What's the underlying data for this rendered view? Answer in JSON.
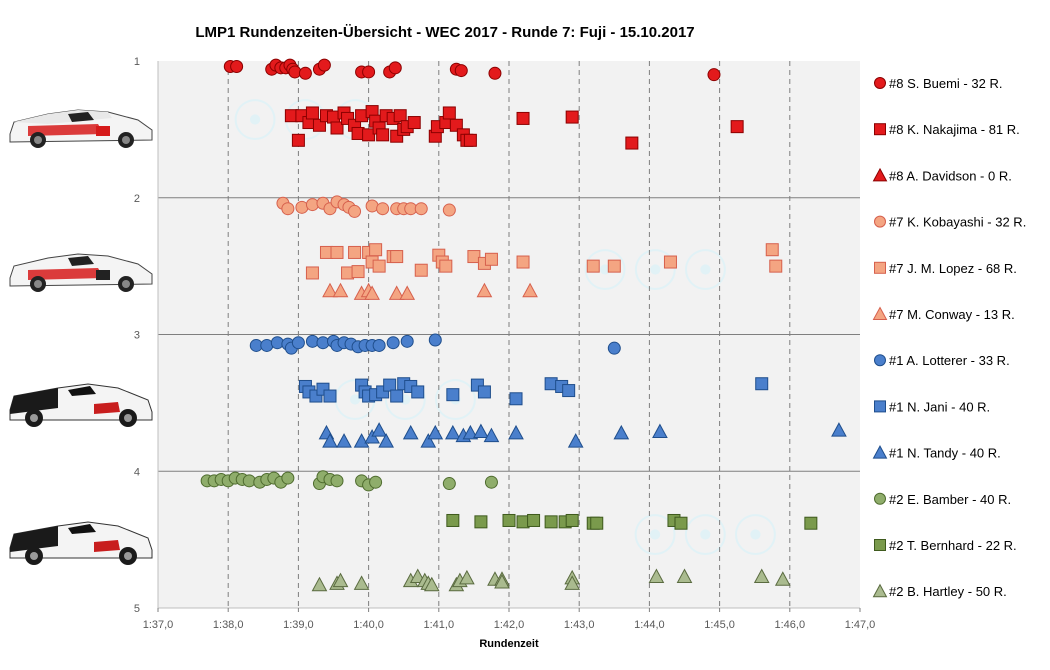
{
  "chart_data": {
    "type": "scatter",
    "title": "LMP1  Rundenzeiten-Übersicht  - WEC 2017  - Runde  7: Fuji  - 15.10.2017",
    "xlabel": "Rundenzeit",
    "ylabel": "",
    "xlim": [
      97,
      107
    ],
    "ylim": [
      1,
      5
    ],
    "y_reversed": true,
    "grid": {
      "x": "dashed",
      "y": "solid"
    },
    "legend_position": "right",
    "xticks": [
      {
        "value": 97,
        "label": "1:37,0"
      },
      {
        "value": 98,
        "label": "1:38,0"
      },
      {
        "value": 99,
        "label": "1:39,0"
      },
      {
        "value": 100,
        "label": "1:40,0"
      },
      {
        "value": 101,
        "label": "1:41,0"
      },
      {
        "value": 102,
        "label": "1:42,0"
      },
      {
        "value": 103,
        "label": "1:43,0"
      },
      {
        "value": 104,
        "label": "1:44,0"
      },
      {
        "value": 105,
        "label": "1:45,0"
      },
      {
        "value": 106,
        "label": "1:46,0"
      },
      {
        "value": 107,
        "label": "1:47,0"
      }
    ],
    "yticks": [
      {
        "value": 1,
        "label": "1"
      },
      {
        "value": 2,
        "label": "2"
      },
      {
        "value": 3,
        "label": "3"
      },
      {
        "value": 4,
        "label": "4"
      },
      {
        "value": 5,
        "label": "5"
      }
    ],
    "series": [
      {
        "name": "#8 S. Buemi - 32 R.",
        "marker": "circle",
        "color": "#e31a1c",
        "stroke": "#8b0000",
        "points": [
          [
            98.03,
            1.04
          ],
          [
            98.12,
            1.04
          ],
          [
            98.62,
            1.06
          ],
          [
            98.68,
            1.03
          ],
          [
            98.75,
            1.05
          ],
          [
            98.82,
            1.05
          ],
          [
            98.88,
            1.03
          ],
          [
            98.92,
            1.06
          ],
          [
            98.95,
            1.08
          ],
          [
            99.1,
            1.09
          ],
          [
            99.3,
            1.06
          ],
          [
            99.37,
            1.03
          ],
          [
            99.9,
            1.08
          ],
          [
            100.0,
            1.08
          ],
          [
            100.3,
            1.08
          ],
          [
            100.38,
            1.05
          ],
          [
            101.25,
            1.06
          ],
          [
            101.32,
            1.07
          ],
          [
            101.8,
            1.09
          ],
          [
            104.92,
            1.1
          ]
        ]
      },
      {
        "name": "#8 K. Nakajima - 81 R.",
        "marker": "square",
        "color": "#e31a1c",
        "stroke": "#8b0000",
        "points": [
          [
            98.9,
            1.4
          ],
          [
            99.0,
            1.58
          ],
          [
            99.05,
            1.4
          ],
          [
            99.15,
            1.45
          ],
          [
            99.2,
            1.38
          ],
          [
            99.3,
            1.47
          ],
          [
            99.4,
            1.4
          ],
          [
            99.5,
            1.41
          ],
          [
            99.55,
            1.49
          ],
          [
            99.65,
            1.38
          ],
          [
            99.7,
            1.42
          ],
          [
            99.8,
            1.47
          ],
          [
            99.85,
            1.53
          ],
          [
            99.9,
            1.4
          ],
          [
            100.0,
            1.54
          ],
          [
            100.05,
            1.37
          ],
          [
            100.1,
            1.44
          ],
          [
            100.15,
            1.49
          ],
          [
            100.2,
            1.54
          ],
          [
            100.25,
            1.4
          ],
          [
            100.35,
            1.42
          ],
          [
            100.4,
            1.55
          ],
          [
            100.45,
            1.4
          ],
          [
            100.5,
            1.5
          ],
          [
            100.55,
            1.48
          ],
          [
            100.65,
            1.45
          ],
          [
            100.95,
            1.55
          ],
          [
            100.98,
            1.48
          ],
          [
            101.1,
            1.45
          ],
          [
            101.15,
            1.38
          ],
          [
            101.25,
            1.47
          ],
          [
            101.35,
            1.54
          ],
          [
            101.4,
            1.58
          ],
          [
            101.45,
            1.58
          ],
          [
            102.2,
            1.42
          ],
          [
            102.9,
            1.41
          ],
          [
            103.75,
            1.6
          ],
          [
            105.25,
            1.48
          ]
        ]
      },
      {
        "name": "#8 A. Davidson - 0 R.",
        "marker": "triangle",
        "color": "#e31a1c",
        "stroke": "#8b0000",
        "points": []
      },
      {
        "name": "#7 K. Kobayashi - 32 R.",
        "marker": "circle",
        "color": "#f4a582",
        "stroke": "#d6604d",
        "points": [
          [
            98.78,
            2.04
          ],
          [
            98.85,
            2.08
          ],
          [
            99.05,
            2.07
          ],
          [
            99.2,
            2.05
          ],
          [
            99.35,
            2.04
          ],
          [
            99.45,
            2.08
          ],
          [
            99.55,
            2.03
          ],
          [
            99.65,
            2.05
          ],
          [
            99.72,
            2.07
          ],
          [
            99.8,
            2.1
          ],
          [
            100.05,
            2.06
          ],
          [
            100.2,
            2.08
          ],
          [
            100.4,
            2.08
          ],
          [
            100.5,
            2.08
          ],
          [
            100.6,
            2.08
          ],
          [
            100.75,
            2.08
          ],
          [
            101.15,
            2.09
          ]
        ]
      },
      {
        "name": "#7 J. M. Lopez - 68 R.",
        "marker": "square",
        "color": "#f4a582",
        "stroke": "#d6604d",
        "points": [
          [
            99.2,
            2.55
          ],
          [
            99.4,
            2.4
          ],
          [
            99.55,
            2.4
          ],
          [
            99.7,
            2.55
          ],
          [
            99.8,
            2.4
          ],
          [
            99.85,
            2.54
          ],
          [
            100.0,
            2.4
          ],
          [
            100.05,
            2.47
          ],
          [
            100.1,
            2.38
          ],
          [
            100.15,
            2.5
          ],
          [
            100.35,
            2.43
          ],
          [
            100.4,
            2.43
          ],
          [
            100.75,
            2.53
          ],
          [
            101.0,
            2.42
          ],
          [
            101.05,
            2.47
          ],
          [
            101.1,
            2.5
          ],
          [
            101.5,
            2.43
          ],
          [
            101.65,
            2.48
          ],
          [
            101.75,
            2.45
          ],
          [
            102.2,
            2.47
          ],
          [
            103.2,
            2.5
          ],
          [
            103.5,
            2.5
          ],
          [
            104.3,
            2.47
          ],
          [
            105.75,
            2.38
          ],
          [
            105.8,
            2.5
          ]
        ]
      },
      {
        "name": "#7 M. Conway - 13 R.",
        "marker": "triangle",
        "color": "#f4a582",
        "stroke": "#d6604d",
        "points": [
          [
            99.45,
            2.68
          ],
          [
            99.6,
            2.68
          ],
          [
            99.9,
            2.7
          ],
          [
            100.0,
            2.68
          ],
          [
            100.05,
            2.7
          ],
          [
            100.4,
            2.7
          ],
          [
            100.55,
            2.7
          ],
          [
            101.65,
            2.68
          ],
          [
            102.3,
            2.68
          ]
        ]
      },
      {
        "name": "#1 A. Lotterer - 33 R.",
        "marker": "circle",
        "color": "#4a7fcc",
        "stroke": "#1f4e8c",
        "points": [
          [
            98.4,
            3.08
          ],
          [
            98.55,
            3.08
          ],
          [
            98.7,
            3.06
          ],
          [
            98.85,
            3.07
          ],
          [
            98.9,
            3.1
          ],
          [
            99.0,
            3.06
          ],
          [
            99.2,
            3.05
          ],
          [
            99.35,
            3.06
          ],
          [
            99.5,
            3.05
          ],
          [
            99.55,
            3.08
          ],
          [
            99.65,
            3.06
          ],
          [
            99.75,
            3.07
          ],
          [
            99.85,
            3.09
          ],
          [
            99.95,
            3.08
          ],
          [
            100.05,
            3.08
          ],
          [
            100.15,
            3.08
          ],
          [
            100.35,
            3.06
          ],
          [
            100.55,
            3.05
          ],
          [
            100.95,
            3.04
          ],
          [
            103.5,
            3.1
          ]
        ]
      },
      {
        "name": "#1 N. Jani - 40 R.",
        "marker": "square",
        "color": "#4a7fcc",
        "stroke": "#1f4e8c",
        "points": [
          [
            99.1,
            3.38
          ],
          [
            99.15,
            3.42
          ],
          [
            99.25,
            3.45
          ],
          [
            99.35,
            3.4
          ],
          [
            99.45,
            3.45
          ],
          [
            99.9,
            3.37
          ],
          [
            99.95,
            3.42
          ],
          [
            100.0,
            3.45
          ],
          [
            100.1,
            3.44
          ],
          [
            100.2,
            3.42
          ],
          [
            100.3,
            3.37
          ],
          [
            100.4,
            3.45
          ],
          [
            100.5,
            3.36
          ],
          [
            100.6,
            3.38
          ],
          [
            100.7,
            3.42
          ],
          [
            101.2,
            3.44
          ],
          [
            101.55,
            3.37
          ],
          [
            101.65,
            3.42
          ],
          [
            102.1,
            3.47
          ],
          [
            102.6,
            3.36
          ],
          [
            102.75,
            3.38
          ],
          [
            102.85,
            3.41
          ],
          [
            105.6,
            3.36
          ]
        ]
      },
      {
        "name": "#1 N. Tandy - 40 R.",
        "marker": "triangle",
        "color": "#4a7fcc",
        "stroke": "#1f4e8c",
        "points": [
          [
            99.4,
            3.72
          ],
          [
            99.45,
            3.78
          ],
          [
            99.65,
            3.78
          ],
          [
            99.9,
            3.78
          ],
          [
            100.05,
            3.75
          ],
          [
            100.15,
            3.7
          ],
          [
            100.25,
            3.78
          ],
          [
            100.6,
            3.72
          ],
          [
            100.85,
            3.78
          ],
          [
            100.95,
            3.72
          ],
          [
            101.2,
            3.72
          ],
          [
            101.35,
            3.74
          ],
          [
            101.45,
            3.72
          ],
          [
            101.6,
            3.71
          ],
          [
            101.75,
            3.74
          ],
          [
            102.1,
            3.72
          ],
          [
            102.95,
            3.78
          ],
          [
            103.6,
            3.72
          ],
          [
            104.15,
            3.71
          ],
          [
            106.7,
            3.7
          ]
        ]
      },
      {
        "name": "#2 E. Bamber - 40 R.",
        "marker": "circle",
        "color": "#8fad6b",
        "stroke": "#4e6b2e",
        "points": [
          [
            97.7,
            4.07
          ],
          [
            97.8,
            4.07
          ],
          [
            97.9,
            4.06
          ],
          [
            98.0,
            4.07
          ],
          [
            98.1,
            4.05
          ],
          [
            98.2,
            4.06
          ],
          [
            98.3,
            4.07
          ],
          [
            98.45,
            4.08
          ],
          [
            98.55,
            4.06
          ],
          [
            98.65,
            4.05
          ],
          [
            98.75,
            4.08
          ],
          [
            98.85,
            4.05
          ],
          [
            99.3,
            4.09
          ],
          [
            99.35,
            4.04
          ],
          [
            99.45,
            4.06
          ],
          [
            99.55,
            4.07
          ],
          [
            99.9,
            4.07
          ],
          [
            100.0,
            4.1
          ],
          [
            100.1,
            4.08
          ],
          [
            101.15,
            4.09
          ],
          [
            101.75,
            4.08
          ]
        ]
      },
      {
        "name": "#2 T. Bernhard - 22 R.",
        "marker": "square",
        "color": "#7a9a4c",
        "stroke": "#3f5a1e",
        "points": [
          [
            101.2,
            4.36
          ],
          [
            101.6,
            4.37
          ],
          [
            102.0,
            4.36
          ],
          [
            102.2,
            4.37
          ],
          [
            102.35,
            4.36
          ],
          [
            102.6,
            4.37
          ],
          [
            102.8,
            4.37
          ],
          [
            102.9,
            4.36
          ],
          [
            103.2,
            4.38
          ],
          [
            103.25,
            4.38
          ],
          [
            104.35,
            4.36
          ],
          [
            104.45,
            4.38
          ],
          [
            106.3,
            4.38
          ]
        ]
      },
      {
        "name": "#2 B. Hartley - 50 R.",
        "marker": "triangle",
        "color": "#aabb8f",
        "stroke": "#5a6b40",
        "points": [
          [
            99.3,
            4.83
          ],
          [
            99.55,
            4.82
          ],
          [
            99.6,
            4.8
          ],
          [
            99.9,
            4.82
          ],
          [
            100.6,
            4.8
          ],
          [
            100.7,
            4.77
          ],
          [
            100.8,
            4.8
          ],
          [
            100.85,
            4.82
          ],
          [
            100.9,
            4.83
          ],
          [
            101.25,
            4.83
          ],
          [
            101.3,
            4.8
          ],
          [
            101.4,
            4.78
          ],
          [
            101.8,
            4.79
          ],
          [
            101.9,
            4.79
          ],
          [
            101.9,
            4.81
          ],
          [
            102.9,
            4.78
          ],
          [
            102.9,
            4.82
          ],
          [
            104.1,
            4.77
          ],
          [
            104.5,
            4.77
          ],
          [
            105.6,
            4.77
          ],
          [
            105.9,
            4.79
          ]
        ]
      }
    ]
  }
}
